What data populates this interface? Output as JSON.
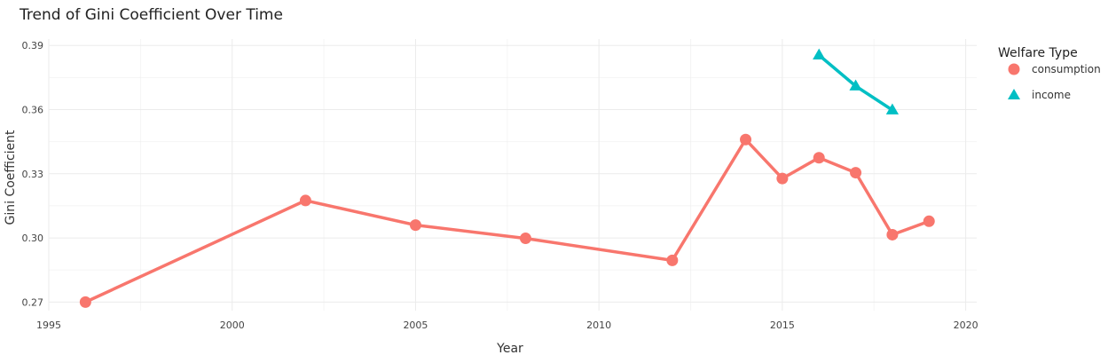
{
  "chart_data": {
    "type": "line",
    "title": "Trend of Gini Coefficient Over Time",
    "xlabel": "Year",
    "ylabel": "Gini Coefficient",
    "xlim": [
      1995,
      2020.3
    ],
    "ylim": [
      0.266,
      0.393
    ],
    "x_ticks": [
      1995,
      2000,
      2005,
      2010,
      2015,
      2020
    ],
    "y_ticks": [
      0.27,
      0.3,
      0.33,
      0.36,
      0.39
    ],
    "y_tick_labels": [
      "0.27",
      "0.30",
      "0.33",
      "0.36",
      "0.39"
    ],
    "grid": true,
    "legend": {
      "title": "Welfare Type",
      "position": "right"
    },
    "series": [
      {
        "name": "consumption",
        "color": "#F8766D",
        "marker": "circle",
        "x": [
          1996,
          2002,
          2005,
          2008,
          2012,
          2014,
          2015,
          2016,
          2017,
          2018,
          2019
        ],
        "y": [
          0.27,
          0.3175,
          0.306,
          0.2998,
          0.2895,
          0.346,
          0.3278,
          0.3375,
          0.3305,
          0.3015,
          0.3078
        ]
      },
      {
        "name": "income",
        "color": "#00BFC4",
        "marker": "triangle",
        "x": [
          2016,
          2017,
          2018
        ],
        "y": [
          0.3855,
          0.371,
          0.3598
        ]
      }
    ]
  }
}
